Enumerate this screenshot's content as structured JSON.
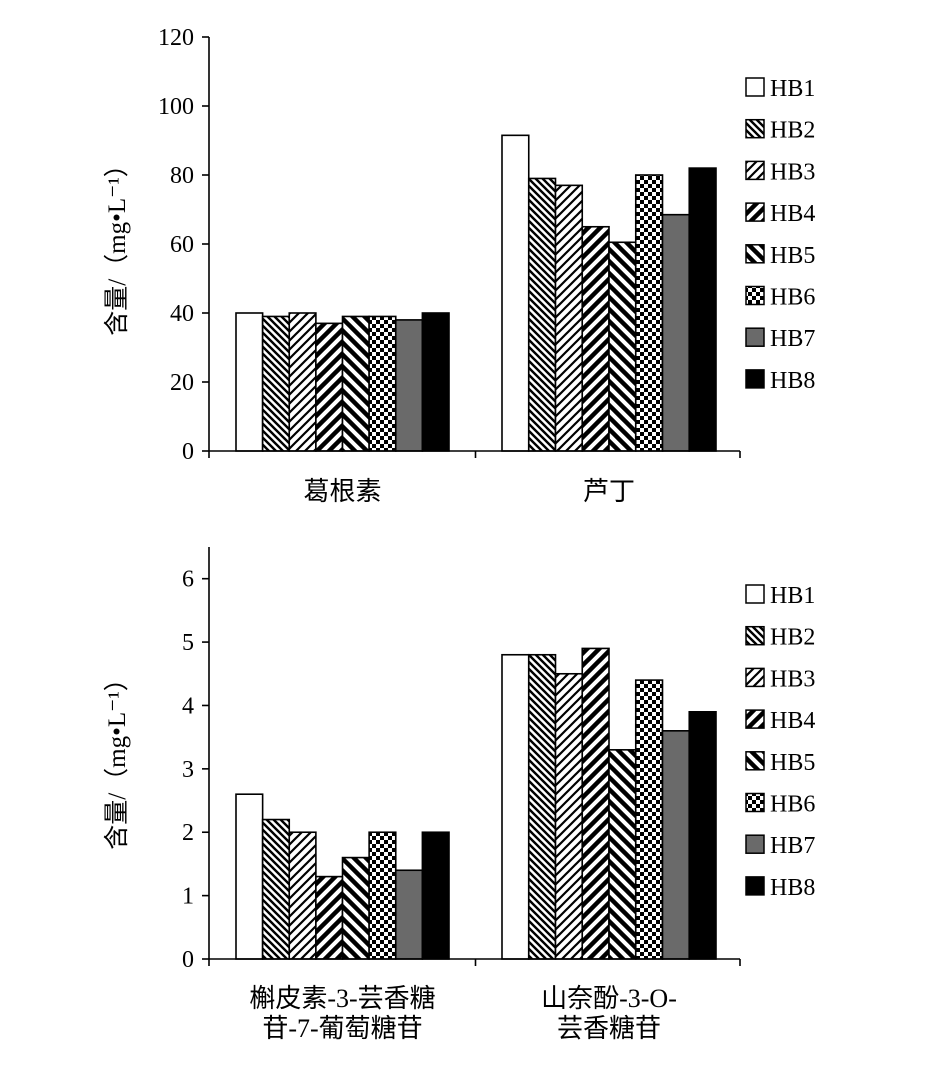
{
  "chart_data": [
    {
      "type": "bar",
      "title": "",
      "ylabel": "含量/（mg•L⁻¹）",
      "ylim": [
        0,
        120
      ],
      "yticks": [
        0,
        20,
        40,
        60,
        80,
        100,
        120
      ],
      "categories": [
        [
          "葛根素"
        ],
        [
          "芦丁"
        ]
      ],
      "legend_position": "right",
      "series": [
        {
          "name": "HB1",
          "values": [
            40,
            91.5
          ]
        },
        {
          "name": "HB2",
          "values": [
            39,
            79
          ]
        },
        {
          "name": "HB3",
          "values": [
            40,
            77
          ]
        },
        {
          "name": "HB4",
          "values": [
            37,
            65
          ]
        },
        {
          "name": "HB5",
          "values": [
            39,
            60.5
          ]
        },
        {
          "name": "HB6",
          "values": [
            39,
            80
          ]
        },
        {
          "name": "HB7",
          "values": [
            38,
            68.5
          ]
        },
        {
          "name": "HB8",
          "values": [
            40,
            82
          ]
        }
      ]
    },
    {
      "type": "bar",
      "title": "",
      "ylabel": "含量/（mg•L⁻¹）",
      "ylim": [
        0,
        6.5
      ],
      "yticks": [
        0,
        1,
        2,
        3,
        4,
        5,
        6
      ],
      "categories": [
        [
          "槲皮素-3-芸香糖",
          "苷-7-葡萄糖苷"
        ],
        [
          "山奈酚-3-O-",
          "芸香糖苷"
        ]
      ],
      "legend_position": "right",
      "series": [
        {
          "name": "HB1",
          "values": [
            2.6,
            4.8
          ]
        },
        {
          "name": "HB2",
          "values": [
            2.2,
            4.8
          ]
        },
        {
          "name": "HB3",
          "values": [
            2.0,
            4.5
          ]
        },
        {
          "name": "HB4",
          "values": [
            1.3,
            4.9
          ]
        },
        {
          "name": "HB5",
          "values": [
            1.6,
            3.3
          ]
        },
        {
          "name": "HB6",
          "values": [
            2.0,
            4.4
          ]
        },
        {
          "name": "HB7",
          "values": [
            1.4,
            3.6
          ]
        },
        {
          "name": "HB8",
          "values": [
            2.0,
            3.9
          ]
        }
      ]
    }
  ]
}
